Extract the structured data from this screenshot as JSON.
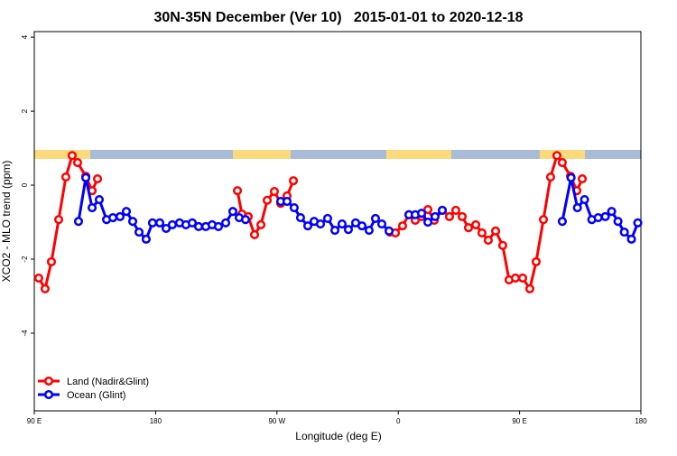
{
  "chart_data": {
    "type": "line",
    "title": "30N-35N December (Ver 10)   2015-01-01 to 2020-12-18",
    "x_label": "Longitude (deg E)",
    "y_label": "XCO2 - MLO trend (ppm)",
    "xlim": [
      90,
      540
    ],
    "xticks": [
      {
        "value": 90,
        "label": "90 E"
      },
      {
        "value": 180,
        "label": "180"
      },
      {
        "value": 270,
        "label": "90 W"
      },
      {
        "value": 360,
        "label": "0"
      },
      {
        "value": 450,
        "label": "90 E"
      },
      {
        "value": 540,
        "label": "180"
      }
    ],
    "ylim": [
      -6.1,
      4.15
    ],
    "yticks": [
      -4,
      -2,
      0,
      2,
      4
    ],
    "legend": "lower left",
    "series": [
      {
        "name": "Land (Nadir&Glint)",
        "color": "#ff0000",
        "x": [
          93.3,
          98.0,
          102.7,
          108.1,
          113.4,
          118.1,
          122.1,
          128.2,
          132.9,
          136.9,
          null,
          240.7,
          244.0,
          248.7,
          253.4,
          258.1,
          262.8,
          268.1,
          272.8,
          277.5,
          282.2,
          null,
          353.8,
          357.9,
          363.2,
          367.9,
          372.6,
          377.3,
          382.0,
          386.7,
          392.7,
          398.0,
          402.7,
          407.4,
          412.1,
          417.5,
          422.1,
          426.8,
          432.2,
          437.5,
          442.2,
          446.9,
          452.3,
          457.6,
          462.3,
          467.7,
          473.0,
          477.7,
          481.7,
          487.8,
          492.5,
          496.5
        ],
        "values": [
          -2.51,
          -2.8,
          -2.07,
          -0.93,
          0.22,
          0.8,
          0.61,
          0.24,
          -0.15,
          0.17,
          null,
          -0.15,
          -0.78,
          -0.85,
          -1.34,
          -1.07,
          -0.41,
          -0.17,
          -0.49,
          -0.29,
          0.12,
          null,
          -1.27,
          -1.29,
          -1.1,
          -0.8,
          -0.95,
          -0.85,
          -0.66,
          -0.95,
          -0.68,
          -0.85,
          -0.68,
          -0.85,
          -1.15,
          -1.07,
          -1.29,
          -1.49,
          -1.24,
          -1.63,
          -2.56,
          -2.51,
          -2.51,
          -2.8,
          -2.07,
          -0.93,
          0.22,
          0.8,
          0.61,
          0.24,
          -0.15,
          0.17
        ]
      },
      {
        "name": "Ocean (Glint)",
        "color": "#0000ff",
        "x": [
          122.8,
          128.2,
          132.9,
          138.2,
          143.6,
          148.3,
          153.6,
          158.3,
          163.0,
          167.7,
          173.0,
          177.7,
          183.1,
          187.8,
          192.4,
          197.8,
          202.5,
          207.2,
          211.9,
          217.2,
          221.9,
          226.6,
          232.0,
          237.3,
          242.0,
          246.7,
          null,
          272.8,
          277.5,
          282.8,
          287.5,
          292.9,
          297.6,
          302.3,
          307.6,
          313.0,
          318.3,
          323.0,
          328.4,
          333.1,
          338.4,
          343.1,
          347.8,
          353.2,
          null,
          367.9,
          372.6,
          377.3,
          382.0,
          387.3,
          392.7,
          null,
          481.7,
          488.2,
          492.9,
          498.2,
          503.6,
          508.3,
          513.6,
          518.3,
          523.0,
          527.7,
          533.0,
          537.7
        ],
        "values": [
          -0.98,
          0.2,
          -0.61,
          -0.39,
          -0.93,
          -0.88,
          -0.85,
          -0.71,
          -0.98,
          -1.27,
          -1.46,
          -1.02,
          -1.02,
          -1.17,
          -1.07,
          -1.02,
          -1.07,
          -1.02,
          -1.12,
          -1.12,
          -1.07,
          -1.12,
          -1.02,
          -0.71,
          -0.88,
          -0.93,
          null,
          -0.44,
          -0.44,
          -0.61,
          -0.88,
          -1.1,
          -0.98,
          -1.05,
          -0.9,
          -1.22,
          -1.05,
          -1.2,
          -1.02,
          -1.1,
          -1.22,
          -0.9,
          -1.05,
          -1.24,
          null,
          -0.8,
          -0.8,
          -0.76,
          -1.0,
          -0.85,
          -0.68,
          null,
          -0.98,
          0.2,
          -0.61,
          -0.39,
          -0.93,
          -0.88,
          -0.85,
          -0.71,
          -0.98,
          -1.27,
          -1.46,
          -1.02
        ]
      }
    ]
  }
}
